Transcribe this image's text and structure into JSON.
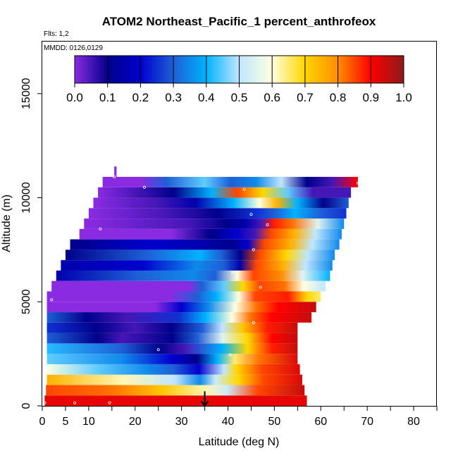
{
  "chart_data": {
    "type": "heatmap",
    "title": "ATOM2 Northeast_Pacific_1 percent_anthrofeox",
    "flights_label": "Flts: 1,2",
    "dates_label": "MMDD: 0126,0129",
    "xlabel": "Latitude (deg N)",
    "ylabel": "Altitude (m)",
    "xlim": [
      0,
      85
    ],
    "ylim": [
      0,
      17500
    ],
    "x_ticks": [
      0,
      5,
      10,
      20,
      30,
      40,
      50,
      60,
      70,
      80
    ],
    "x_minor_ticks": [
      15,
      25,
      35,
      45,
      55,
      65,
      75,
      85
    ],
    "y_ticks": [
      0,
      5000,
      10000,
      15000
    ],
    "colorbar": {
      "range": [
        0,
        1
      ],
      "ticks": [
        "0.0",
        "0.1",
        "0.2",
        "0.3",
        "0.4",
        "0.5",
        "0.6",
        "0.7",
        "0.8",
        "0.9",
        "1.0"
      ],
      "colors": [
        "#8a2be2",
        "#00008b",
        "#0000cd",
        "#1e5fd6",
        "#00b2ff",
        "#bfe6ff",
        "#ffffe0",
        "#ffd700",
        "#ff8c00",
        "#ff0000",
        "#8b1a1a"
      ]
    },
    "layers": [
      {
        "alt": 250,
        "lat_start": 0.5,
        "lat_end": 57,
        "stops": [
          [
            0,
            0.92
          ],
          [
            0.9,
            0.92
          ]
        ]
      },
      {
        "alt": 750,
        "lat_start": 0.8,
        "lat_end": 56.5,
        "stops": [
          [
            0,
            0.85
          ],
          [
            0.25,
            0.82
          ],
          [
            0.45,
            0.72
          ],
          [
            0.62,
            0.62
          ],
          [
            0.7,
            0.52
          ],
          [
            0.82,
            0.85
          ],
          [
            1,
            0.95
          ]
        ]
      },
      {
        "alt": 1250,
        "lat_start": 1,
        "lat_end": 56,
        "stops": [
          [
            0,
            0.75
          ],
          [
            0.3,
            0.62
          ],
          [
            0.5,
            0.5
          ],
          [
            0.6,
            0.35
          ],
          [
            0.66,
            0.52
          ],
          [
            0.75,
            0.7
          ],
          [
            0.85,
            0.85
          ],
          [
            1,
            0.93
          ]
        ]
      },
      {
        "alt": 1750,
        "lat_start": 1,
        "lat_end": 55.5,
        "stops": [
          [
            0,
            0.6
          ],
          [
            0.2,
            0.45
          ],
          [
            0.4,
            0.35
          ],
          [
            0.5,
            0.3
          ],
          [
            0.6,
            0.2
          ],
          [
            0.7,
            0.5
          ],
          [
            0.75,
            0.7
          ],
          [
            0.85,
            0.85
          ],
          [
            1,
            0.93
          ]
        ]
      },
      {
        "alt": 2250,
        "lat_start": 1,
        "lat_end": 55,
        "stops": [
          [
            0,
            0.45
          ],
          [
            0.3,
            0.35
          ],
          [
            0.5,
            0.2
          ],
          [
            0.6,
            0.1
          ],
          [
            0.68,
            0.4
          ],
          [
            0.75,
            0.65
          ],
          [
            0.85,
            0.82
          ],
          [
            1,
            0.93
          ]
        ]
      },
      {
        "alt": 2750,
        "lat_start": 1,
        "lat_end": 55,
        "stops": [
          [
            0,
            0.42
          ],
          [
            0.3,
            0.3
          ],
          [
            0.45,
            0.1
          ],
          [
            0.55,
            0.05
          ],
          [
            0.7,
            0.4
          ],
          [
            0.8,
            0.7
          ],
          [
            0.9,
            0.88
          ],
          [
            1,
            0.95
          ]
        ]
      },
      {
        "alt": 3250,
        "lat_start": 1,
        "lat_end": 55,
        "stops": [
          [
            0,
            0.3
          ],
          [
            0.2,
            0.1
          ],
          [
            0.3,
            0.05
          ],
          [
            0.5,
            0.1
          ],
          [
            0.6,
            0.3
          ],
          [
            0.7,
            0.55
          ],
          [
            0.8,
            0.7
          ],
          [
            0.9,
            0.9
          ],
          [
            1,
            0.95
          ]
        ]
      },
      {
        "alt": 3750,
        "lat_start": 1,
        "lat_end": 55,
        "stops": [
          [
            0,
            0.25
          ],
          [
            0.2,
            0.1
          ],
          [
            0.35,
            0.05
          ],
          [
            0.5,
            0.1
          ],
          [
            0.62,
            0.3
          ],
          [
            0.7,
            0.5
          ],
          [
            0.78,
            0.72
          ],
          [
            0.88,
            0.88
          ],
          [
            1,
            0.95
          ]
        ]
      },
      {
        "alt": 4250,
        "lat_start": 1,
        "lat_end": 58,
        "stops": [
          [
            0,
            0.3
          ],
          [
            0.15,
            0.1
          ],
          [
            0.3,
            0.05
          ],
          [
            0.5,
            0.25
          ],
          [
            0.6,
            0.4
          ],
          [
            0.7,
            0.6
          ],
          [
            0.77,
            0.82
          ],
          [
            0.85,
            0.9
          ],
          [
            1,
            0.95
          ]
        ]
      },
      {
        "alt": 4750,
        "lat_start": 1,
        "lat_end": 59,
        "stops": [
          [
            0,
            0.0
          ],
          [
            0.4,
            0.0
          ],
          [
            0.5,
            0.2
          ],
          [
            0.6,
            0.35
          ],
          [
            0.7,
            0.6
          ],
          [
            0.78,
            0.82
          ],
          [
            0.86,
            0.9
          ],
          [
            1,
            0.95
          ]
        ]
      },
      {
        "alt": 5250,
        "lat_start": 1,
        "lat_end": 60,
        "stops": [
          [
            0,
            0.0
          ],
          [
            0.45,
            0.0
          ],
          [
            0.55,
            0.3
          ],
          [
            0.62,
            0.4
          ],
          [
            0.7,
            0.6
          ],
          [
            0.76,
            0.85
          ],
          [
            0.88,
            0.88
          ],
          [
            0.95,
            0.7
          ],
          [
            1,
            0.65
          ]
        ]
      },
      {
        "alt": 5750,
        "lat_start": 2,
        "lat_end": 61,
        "stops": [
          [
            0,
            0.0
          ],
          [
            0.5,
            0.0
          ],
          [
            0.55,
            0.3
          ],
          [
            0.63,
            0.45
          ],
          [
            0.7,
            0.7
          ],
          [
            0.76,
            0.85
          ],
          [
            0.85,
            0.82
          ],
          [
            0.92,
            0.6
          ],
          [
            1,
            0.5
          ]
        ]
      },
      {
        "alt": 6250,
        "lat_start": 3,
        "lat_end": 62,
        "stops": [
          [
            0,
            0.15
          ],
          [
            0.3,
            0.3
          ],
          [
            0.5,
            0.35
          ],
          [
            0.58,
            0.3
          ],
          [
            0.66,
            0.6
          ],
          [
            0.72,
            0.85
          ],
          [
            0.82,
            0.8
          ],
          [
            0.9,
            0.55
          ],
          [
            1,
            0.4
          ]
        ]
      },
      {
        "alt": 6750,
        "lat_start": 4,
        "lat_end": 62.5,
        "stops": [
          [
            0,
            0.15
          ],
          [
            0.3,
            0.2
          ],
          [
            0.5,
            0.35
          ],
          [
            0.6,
            0.3
          ],
          [
            0.66,
            0.15
          ],
          [
            0.72,
            0.85
          ],
          [
            0.82,
            0.75
          ],
          [
            0.9,
            0.5
          ],
          [
            1,
            0.35
          ]
        ]
      },
      {
        "alt": 7250,
        "lat_start": 5,
        "lat_end": 63,
        "stops": [
          [
            0,
            0.1
          ],
          [
            0.3,
            0.3
          ],
          [
            0.5,
            0.4
          ],
          [
            0.58,
            0.3
          ],
          [
            0.65,
            0.1
          ],
          [
            0.72,
            0.85
          ],
          [
            0.82,
            0.7
          ],
          [
            0.9,
            0.5
          ],
          [
            1,
            0.35
          ]
        ]
      },
      {
        "alt": 7750,
        "lat_start": 6,
        "lat_end": 64,
        "stops": [
          [
            0,
            0.1
          ],
          [
            0.3,
            0.2
          ],
          [
            0.5,
            0.15
          ],
          [
            0.6,
            0.1
          ],
          [
            0.66,
            0.2
          ],
          [
            0.72,
            0.85
          ],
          [
            0.82,
            0.75
          ],
          [
            0.9,
            0.5
          ],
          [
            1,
            0.35
          ]
        ]
      },
      {
        "alt": 8250,
        "lat_start": 8,
        "lat_end": 64.5,
        "stops": [
          [
            0,
            0.0
          ],
          [
            0.35,
            0.0
          ],
          [
            0.5,
            0.1
          ],
          [
            0.6,
            0.2
          ],
          [
            0.67,
            0.05
          ],
          [
            0.73,
            0.85
          ],
          [
            0.82,
            0.75
          ],
          [
            0.9,
            0.5
          ],
          [
            1,
            0.35
          ]
        ]
      },
      {
        "alt": 8750,
        "lat_start": 9,
        "lat_end": 65,
        "stops": [
          [
            0,
            0.0
          ],
          [
            0.4,
            0.05
          ],
          [
            0.55,
            0.1
          ],
          [
            0.62,
            0.15
          ],
          [
            0.68,
            0.05
          ],
          [
            0.73,
            0.88
          ],
          [
            0.8,
            0.82
          ],
          [
            0.9,
            0.55
          ],
          [
            1,
            0.35
          ]
        ]
      },
      {
        "alt": 9250,
        "lat_start": 10,
        "lat_end": 65.5,
        "stops": [
          [
            0,
            0.0
          ],
          [
            0.3,
            0.05
          ],
          [
            0.5,
            0.1
          ],
          [
            0.65,
            0.25
          ],
          [
            0.72,
            0.3
          ],
          [
            0.8,
            0.4
          ],
          [
            0.9,
            0.3
          ],
          [
            1,
            0.25
          ]
        ]
      },
      {
        "alt": 9750,
        "lat_start": 11,
        "lat_end": 66,
        "stops": [
          [
            0,
            0.0
          ],
          [
            0.25,
            0.05
          ],
          [
            0.4,
            0.15
          ],
          [
            0.55,
            0.4
          ],
          [
            0.65,
            0.6
          ],
          [
            0.72,
            0.75
          ],
          [
            0.8,
            0.4
          ],
          [
            0.9,
            0.1
          ],
          [
            1,
            0.3
          ]
        ]
      },
      {
        "alt": 10250,
        "lat_start": 12,
        "lat_end": 66.5,
        "stops": [
          [
            0,
            0.0
          ],
          [
            0.3,
            0.1
          ],
          [
            0.45,
            0.4
          ],
          [
            0.55,
            0.85
          ],
          [
            0.65,
            0.7
          ],
          [
            0.75,
            0.45
          ],
          [
            0.85,
            0.05
          ],
          [
            1,
            0.05
          ]
        ]
      },
      {
        "alt": 10750,
        "lat_start": 13,
        "lat_end": 68,
        "stops": [
          [
            0,
            0.0
          ],
          [
            0.15,
            0.0
          ],
          [
            0.25,
            0.3
          ],
          [
            0.4,
            0.45
          ],
          [
            0.5,
            0.3
          ],
          [
            0.6,
            0.35
          ],
          [
            0.7,
            0.5
          ],
          [
            0.8,
            0.1
          ],
          [
            0.9,
            0.05
          ],
          [
            1,
            0.9
          ]
        ]
      },
      {
        "alt": 11250,
        "lat_start": 15.5,
        "lat_end": 16,
        "stops": [
          [
            0,
            0.0
          ],
          [
            1,
            0.0
          ]
        ]
      }
    ],
    "markers": [
      {
        "lat": 0.5,
        "alt": 150
      },
      {
        "lat": 7,
        "alt": 150
      },
      {
        "lat": 14.5,
        "alt": 150
      },
      {
        "lat": 2,
        "alt": 5100
      },
      {
        "lat": 12.5,
        "alt": 8500
      },
      {
        "lat": 15.5,
        "alt": 11000
      },
      {
        "lat": 22,
        "alt": 10500
      },
      {
        "lat": 25,
        "alt": 2700
      },
      {
        "lat": 40.5,
        "alt": 2450
      },
      {
        "lat": 41,
        "alt": 6400
      },
      {
        "lat": 43.5,
        "alt": 10400
      },
      {
        "lat": 45,
        "alt": 9200
      },
      {
        "lat": 45.5,
        "alt": 7500
      },
      {
        "lat": 45.5,
        "alt": 4000
      },
      {
        "lat": 47,
        "alt": 5700
      },
      {
        "lat": 48.5,
        "alt": 8700
      },
      {
        "lat": 55.5,
        "alt": 3500
      },
      {
        "lat": 68,
        "alt": 10700
      }
    ],
    "arrow": {
      "lat": 35,
      "alt_from": 700,
      "alt_to": 0
    }
  }
}
